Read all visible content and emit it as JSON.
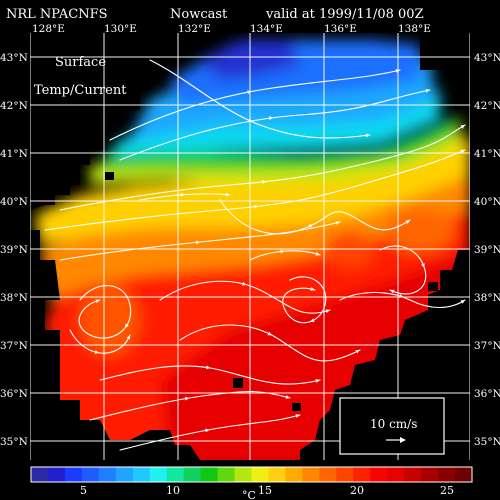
{
  "header": {
    "left": "NRL NPACNFS",
    "middle": "Nowcast",
    "right": "valid at 1999/11/08 00Z"
  },
  "map": {
    "label_line1": "Surface",
    "label_line2": "Temp/Current",
    "lon_labels": [
      "128°E",
      "130°E",
      "132°E",
      "134°E",
      "136°E",
      "138°E"
    ],
    "lat_labels": [
      "43°N",
      "42°N",
      "41°N",
      "40°N",
      "39°N",
      "38°N",
      "37°N",
      "36°N",
      "35°N"
    ],
    "land_color": "#000000",
    "grid_color": "#ffffff",
    "current_color": "#ffffff"
  },
  "scale_box": {
    "label": "10 cm/s"
  },
  "colorbar": {
    "tick_labels": [
      "5",
      "10",
      "15",
      "20",
      "25"
    ],
    "unit": "°C",
    "colors": [
      "#2a2aa8",
      "#1f1fd0",
      "#1a3cff",
      "#1f5cff",
      "#1f80ff",
      "#1fa4ff",
      "#1fc8ff",
      "#1ff0f0",
      "#10e8a0",
      "#10d060",
      "#10c810",
      "#60d810",
      "#b0e810",
      "#f0f010",
      "#ffd010",
      "#ffaa00",
      "#ff8800",
      "#ff6600",
      "#ff4400",
      "#ff2200",
      "#ff0000",
      "#e60000",
      "#c80000",
      "#a80000",
      "#8a0000",
      "#6e0000"
    ]
  }
}
